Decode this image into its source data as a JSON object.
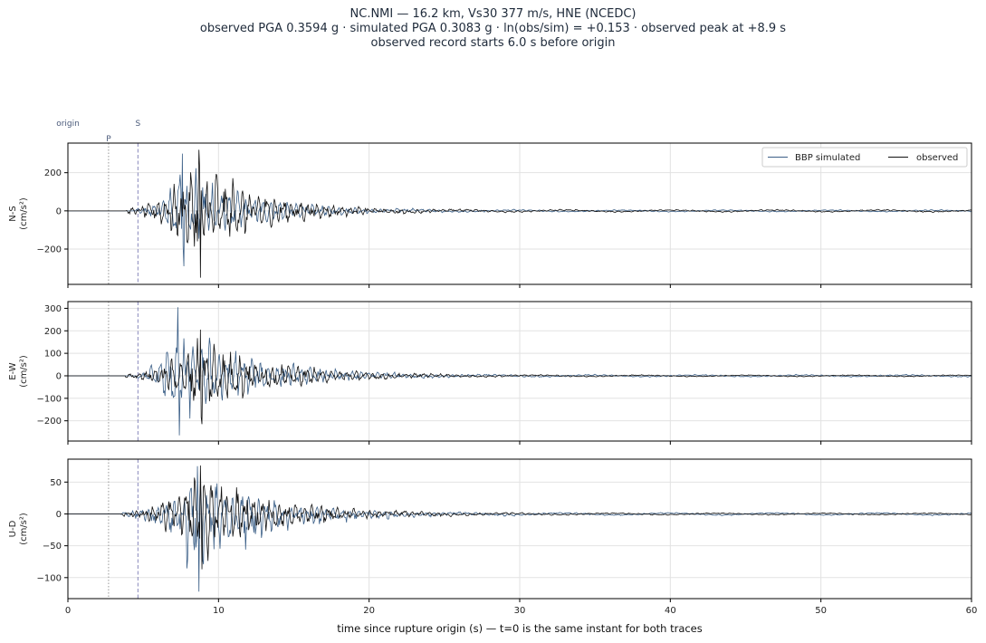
{
  "title": {
    "line1": "NC.NMI  —  16.2 km, Vs30 377 m/s, HNE (NCEDC)",
    "line2": "observed PGA 0.3594 g   ·   simulated PGA 0.3083 g   ·   ln(obs/sim) = +0.153   ·   observed peak at +8.9 s",
    "line3": "observed record starts 6.0 s before origin"
  },
  "phase_markers": {
    "origin_label": "origin",
    "p_label": "P",
    "s_label": "S",
    "p_time": 2.7,
    "s_time": 4.65,
    "p_color": "#999999",
    "s_color": "#8888bb"
  },
  "colors": {
    "simulated": "#3b5f87",
    "observed": "#111111",
    "grid": "#e2e2e2"
  },
  "legend": {
    "simulated": "BBP simulated",
    "observed": "observed",
    "placement": "upper-right",
    "panel": 0
  },
  "xaxis": {
    "label": "time since rupture origin (s)   —   t=0 is the same instant for both traces",
    "ticks": [
      0,
      10,
      20,
      30,
      40,
      50,
      60
    ],
    "tick_labels": [
      "0",
      "10",
      "20",
      "30",
      "40",
      "50",
      "60"
    ],
    "range": [
      0,
      60
    ]
  },
  "panels": [
    {
      "ylabel1": "N-S",
      "ylabel2": "(cm/s²)",
      "range": [
        -385,
        355
      ],
      "ticks": [
        200,
        0,
        -200
      ],
      "tick_labels": [
        "200",
        "0",
        "−200"
      ]
    },
    {
      "ylabel1": "E-W",
      "ylabel2": "(cm/s²)",
      "range": [
        -290,
        330
      ],
      "ticks": [
        300,
        200,
        100,
        0,
        -100,
        -200
      ],
      "tick_labels": [
        "300",
        "200",
        "100",
        "0",
        "−100",
        "−200"
      ]
    },
    {
      "ylabel1": "U-D",
      "ylabel2": "(cm/s²)",
      "range": [
        -133,
        86
      ],
      "ticks": [
        50,
        0,
        -50,
        -100
      ],
      "tick_labels": [
        "50",
        "0",
        "−50",
        "−100"
      ]
    }
  ],
  "chart_data": {
    "type": "line",
    "x_range": [
      0,
      60
    ],
    "series": [
      {
        "name": "BBP simulated",
        "component": "N-S",
        "peak": 300,
        "trough": -290,
        "onset": 4.5,
        "peak_time": 7.6,
        "decay": 4.2
      },
      {
        "name": "observed",
        "component": "N-S",
        "peak": 320,
        "trough": -350,
        "onset": 3.8,
        "peak_time": 8.7,
        "decay": 4.0
      },
      {
        "name": "BBP simulated",
        "component": "E-W",
        "peak": 305,
        "trough": -265,
        "onset": 4.5,
        "peak_time": 7.3,
        "decay": 4.6
      },
      {
        "name": "observed",
        "component": "E-W",
        "peak": 205,
        "trough": -215,
        "onset": 3.8,
        "peak_time": 8.8,
        "decay": 4.6
      },
      {
        "name": "BBP simulated",
        "component": "U-D",
        "peak": 75,
        "trough": -122,
        "onset": 3.5,
        "peak_time": 8.6,
        "decay": 4.5
      },
      {
        "name": "observed",
        "component": "U-D",
        "peak": 76,
        "trough": -87,
        "onset": 3.6,
        "peak_time": 8.8,
        "decay": 4.8
      }
    ]
  }
}
